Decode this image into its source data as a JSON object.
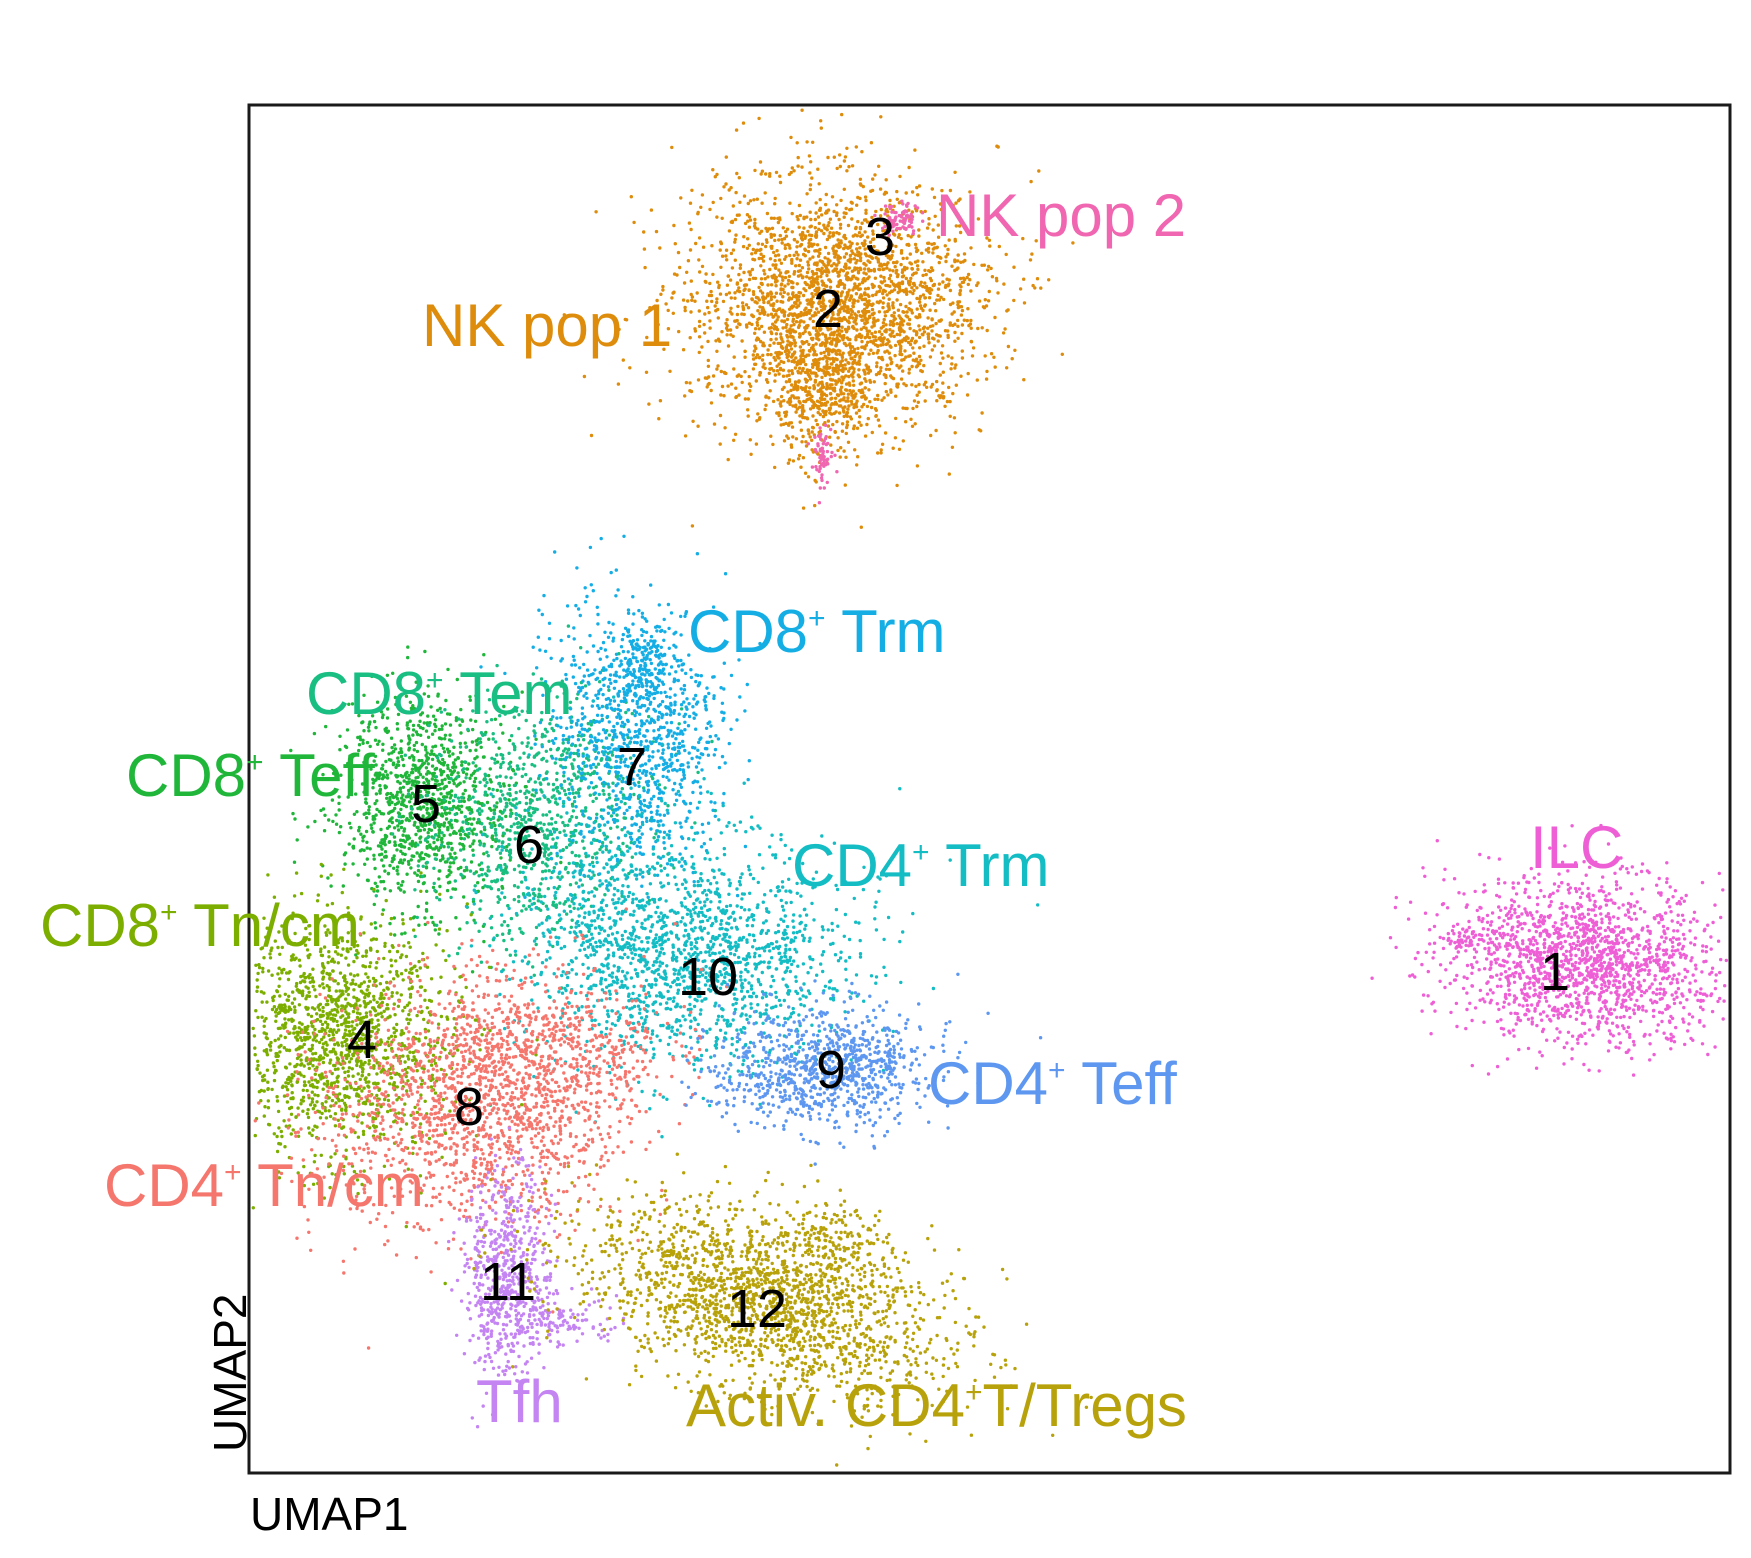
{
  "chart_data": {
    "type": "scatter",
    "xlabel": "UMAP1",
    "ylabel": "UMAP2",
    "grid": false,
    "legend": "none",
    "clusters": [
      {
        "id": "1",
        "name": "ILC",
        "color": "#ee5fd6"
      },
      {
        "id": "2",
        "name": "NK pop 1",
        "color": "#de8c0b"
      },
      {
        "id": "3",
        "name": "NK pop 2",
        "color": "#f066b0"
      },
      {
        "id": "4",
        "name": "CD8+ Tn/cm",
        "color": "#7cae00"
      },
      {
        "id": "5",
        "name": "CD8+ Teff",
        "color": "#1fb63a"
      },
      {
        "id": "6",
        "name": "CD8+ Tem",
        "color": "#19be82"
      },
      {
        "id": "7",
        "name": "CD8+ Trm",
        "color": "#14aee5"
      },
      {
        "id": "8",
        "name": "CD4+ Tn/cm",
        "color": "#f5766d"
      },
      {
        "id": "9",
        "name": "CD4+ Teff",
        "color": "#5d97f0"
      },
      {
        "id": "10",
        "name": "CD4+ Trm",
        "color": "#14bcc4"
      },
      {
        "id": "11",
        "name": "Tfh",
        "color": "#c484f2"
      },
      {
        "id": "12",
        "name": "Activ. CD4+T/Tregs",
        "color": "#b8a20b"
      }
    ]
  }
}
